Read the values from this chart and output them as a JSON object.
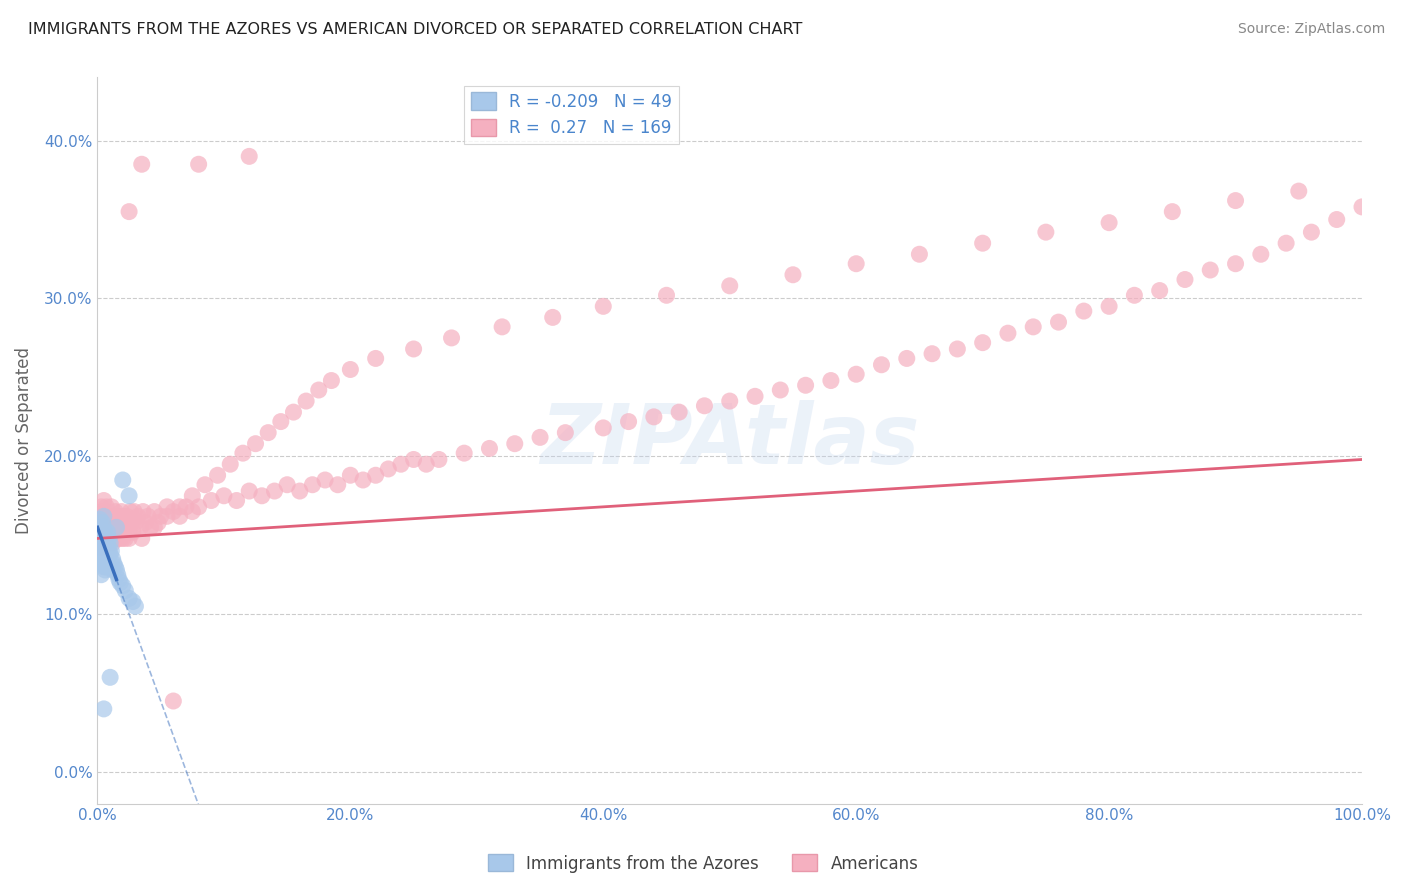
{
  "title": "IMMIGRANTS FROM THE AZORES VS AMERICAN DIVORCED OR SEPARATED CORRELATION CHART",
  "source": "Source: ZipAtlas.com",
  "ylabel": "Divorced or Separated",
  "legend_label1": "Immigrants from the Azores",
  "legend_label2": "Americans",
  "R1": -0.209,
  "N1": 49,
  "R2": 0.27,
  "N2": 169,
  "color_blue": "#a8c8ea",
  "color_pink": "#f5b0c0",
  "color_blue_line": "#3a6fbd",
  "color_pink_line": "#e0607a",
  "xmin": 0.0,
  "xmax": 1.0,
  "ymin": -0.02,
  "ymax": 0.44,
  "yticks": [
    0.0,
    0.1,
    0.2,
    0.3,
    0.4
  ],
  "xticks": [
    0.0,
    0.2,
    0.4,
    0.6,
    0.8,
    1.0
  ],
  "watermark": "ZIPAtlas",
  "blue_scatter_x": [
    0.001,
    0.001,
    0.002,
    0.002,
    0.002,
    0.003,
    0.003,
    0.003,
    0.003,
    0.004,
    0.004,
    0.004,
    0.005,
    0.005,
    0.005,
    0.005,
    0.006,
    0.006,
    0.006,
    0.006,
    0.007,
    0.007,
    0.007,
    0.008,
    0.008,
    0.008,
    0.009,
    0.009,
    0.01,
    0.01,
    0.011,
    0.012,
    0.012,
    0.013,
    0.014,
    0.015,
    0.016,
    0.017,
    0.018,
    0.02,
    0.022,
    0.025,
    0.028,
    0.03,
    0.025,
    0.02,
    0.015,
    0.01,
    0.005
  ],
  "blue_scatter_y": [
    0.148,
    0.142,
    0.155,
    0.138,
    0.16,
    0.152,
    0.145,
    0.135,
    0.125,
    0.158,
    0.148,
    0.132,
    0.162,
    0.155,
    0.145,
    0.13,
    0.152,
    0.142,
    0.138,
    0.128,
    0.148,
    0.14,
    0.13,
    0.152,
    0.145,
    0.135,
    0.148,
    0.14,
    0.145,
    0.138,
    0.14,
    0.135,
    0.128,
    0.132,
    0.13,
    0.128,
    0.125,
    0.122,
    0.12,
    0.118,
    0.115,
    0.11,
    0.108,
    0.105,
    0.175,
    0.185,
    0.155,
    0.06,
    0.04
  ],
  "pink_scatter_x": [
    0.001,
    0.001,
    0.002,
    0.002,
    0.002,
    0.003,
    0.003,
    0.003,
    0.004,
    0.004,
    0.004,
    0.005,
    0.005,
    0.005,
    0.005,
    0.006,
    0.006,
    0.006,
    0.007,
    0.007,
    0.007,
    0.008,
    0.008,
    0.008,
    0.009,
    0.009,
    0.01,
    0.01,
    0.01,
    0.011,
    0.011,
    0.012,
    0.012,
    0.013,
    0.013,
    0.014,
    0.014,
    0.015,
    0.015,
    0.015,
    0.016,
    0.016,
    0.017,
    0.018,
    0.018,
    0.019,
    0.02,
    0.02,
    0.021,
    0.022,
    0.022,
    0.023,
    0.024,
    0.025,
    0.025,
    0.026,
    0.027,
    0.028,
    0.029,
    0.03,
    0.032,
    0.034,
    0.036,
    0.038,
    0.04,
    0.042,
    0.045,
    0.048,
    0.05,
    0.055,
    0.06,
    0.065,
    0.07,
    0.075,
    0.08,
    0.09,
    0.1,
    0.11,
    0.12,
    0.13,
    0.14,
    0.15,
    0.16,
    0.17,
    0.18,
    0.19,
    0.2,
    0.21,
    0.22,
    0.23,
    0.24,
    0.25,
    0.26,
    0.27,
    0.29,
    0.31,
    0.33,
    0.35,
    0.37,
    0.4,
    0.42,
    0.44,
    0.46,
    0.48,
    0.5,
    0.52,
    0.54,
    0.56,
    0.58,
    0.6,
    0.62,
    0.64,
    0.66,
    0.68,
    0.7,
    0.72,
    0.74,
    0.76,
    0.78,
    0.8,
    0.82,
    0.84,
    0.86,
    0.88,
    0.9,
    0.92,
    0.94,
    0.96,
    0.98,
    1.0,
    0.035,
    0.045,
    0.055,
    0.065,
    0.075,
    0.085,
    0.095,
    0.105,
    0.115,
    0.125,
    0.135,
    0.145,
    0.155,
    0.165,
    0.175,
    0.185,
    0.2,
    0.22,
    0.25,
    0.28,
    0.32,
    0.36,
    0.4,
    0.45,
    0.5,
    0.55,
    0.6,
    0.65,
    0.7,
    0.75,
    0.8,
    0.85,
    0.9,
    0.95,
    0.025,
    0.035,
    0.06,
    0.08,
    0.12
  ],
  "pink_scatter_y": [
    0.158,
    0.145,
    0.162,
    0.148,
    0.155,
    0.152,
    0.142,
    0.168,
    0.158,
    0.148,
    0.165,
    0.162,
    0.155,
    0.145,
    0.172,
    0.158,
    0.148,
    0.162,
    0.152,
    0.145,
    0.168,
    0.158,
    0.148,
    0.162,
    0.155,
    0.145,
    0.162,
    0.155,
    0.148,
    0.168,
    0.158,
    0.152,
    0.145,
    0.162,
    0.155,
    0.148,
    0.165,
    0.158,
    0.148,
    0.162,
    0.155,
    0.148,
    0.162,
    0.158,
    0.148,
    0.165,
    0.158,
    0.148,
    0.162,
    0.155,
    0.148,
    0.162,
    0.158,
    0.152,
    0.148,
    0.165,
    0.158,
    0.152,
    0.165,
    0.158,
    0.162,
    0.155,
    0.165,
    0.158,
    0.162,
    0.155,
    0.165,
    0.158,
    0.162,
    0.168,
    0.165,
    0.162,
    0.168,
    0.165,
    0.168,
    0.172,
    0.175,
    0.172,
    0.178,
    0.175,
    0.178,
    0.182,
    0.178,
    0.182,
    0.185,
    0.182,
    0.188,
    0.185,
    0.188,
    0.192,
    0.195,
    0.198,
    0.195,
    0.198,
    0.202,
    0.205,
    0.208,
    0.212,
    0.215,
    0.218,
    0.222,
    0.225,
    0.228,
    0.232,
    0.235,
    0.238,
    0.242,
    0.245,
    0.248,
    0.252,
    0.258,
    0.262,
    0.265,
    0.268,
    0.272,
    0.278,
    0.282,
    0.285,
    0.292,
    0.295,
    0.302,
    0.305,
    0.312,
    0.318,
    0.322,
    0.328,
    0.335,
    0.342,
    0.35,
    0.358,
    0.148,
    0.155,
    0.162,
    0.168,
    0.175,
    0.182,
    0.188,
    0.195,
    0.202,
    0.208,
    0.215,
    0.222,
    0.228,
    0.235,
    0.242,
    0.248,
    0.255,
    0.262,
    0.268,
    0.275,
    0.282,
    0.288,
    0.295,
    0.302,
    0.308,
    0.315,
    0.322,
    0.328,
    0.335,
    0.342,
    0.348,
    0.355,
    0.362,
    0.368,
    0.355,
    0.385,
    0.045,
    0.385,
    0.39
  ]
}
